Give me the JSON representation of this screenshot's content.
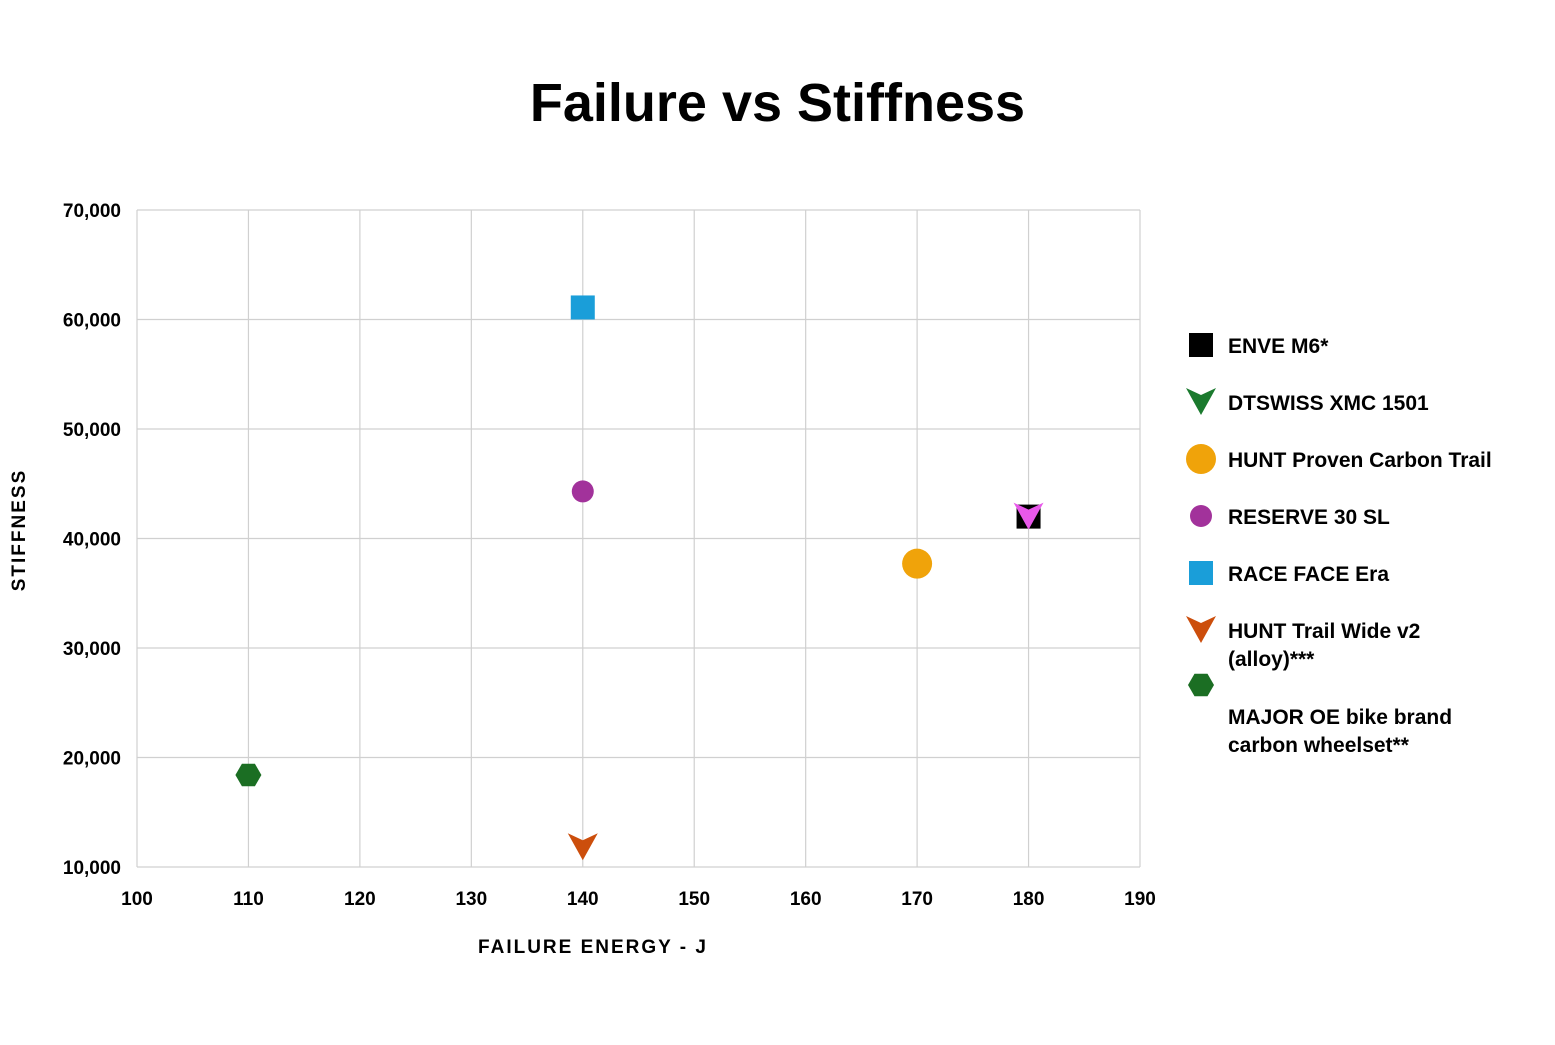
{
  "chart_data": {
    "type": "scatter",
    "title": "Failure vs Stiffness",
    "xlabel": "FAILURE ENERGY - J",
    "ylabel": "STIFFNESS",
    "xlim": [
      100,
      190
    ],
    "ylim": [
      10000,
      70000
    ],
    "x_ticks": [
      100,
      110,
      120,
      130,
      140,
      150,
      160,
      170,
      180,
      190
    ],
    "y_ticks": [
      10000,
      20000,
      30000,
      40000,
      50000,
      60000,
      70000
    ],
    "y_tick_labels": [
      "10,000",
      "20,000",
      "30,000",
      "40,000",
      "50,000",
      "60,000",
      "70,000"
    ],
    "grid": true,
    "legend_position": "right",
    "series": [
      {
        "name": "ENVE M6*",
        "marker": "square",
        "color": "#000000",
        "points": [
          {
            "x": 180,
            "y": 42000
          }
        ]
      },
      {
        "name": "DTSWISS XMC 1501",
        "marker": "triangle-down",
        "color": "#1b7a2e",
        "points": []
      },
      {
        "name": "HUNT Proven Carbon Trail",
        "marker": "circle-large",
        "color": "#f0a30a",
        "points": [
          {
            "x": 170,
            "y": 37700
          }
        ]
      },
      {
        "name": "RESERVE 30 SL",
        "marker": "circle",
        "color": "#a2329b",
        "points": [
          {
            "x": 140,
            "y": 44300
          }
        ]
      },
      {
        "name": "RACE FACE Era",
        "marker": "square",
        "color": "#1a9ed9",
        "points": [
          {
            "x": 140,
            "y": 61100
          }
        ]
      },
      {
        "name": "HUNT Trail Wide v2 (alloy)***",
        "legend_lines": [
          "HUNT Trail Wide v2",
          "(alloy)***"
        ],
        "marker": "triangle-down",
        "color": "#cc4e0c",
        "points": [
          {
            "x": 140,
            "y": 11800
          }
        ]
      },
      {
        "name": "MAJOR OE bike brand carbon wheelset**",
        "legend_lines": [
          "MAJOR OE bike brand",
          "carbon wheelset**"
        ],
        "marker": "hexagon",
        "color": "#1b6e23",
        "points": [
          {
            "x": 110,
            "y": 18400
          }
        ]
      },
      {
        "name": "",
        "marker": "triangle-down",
        "color": "#e858ea",
        "points": [
          {
            "x": 180,
            "y": 42000
          }
        ]
      }
    ]
  }
}
